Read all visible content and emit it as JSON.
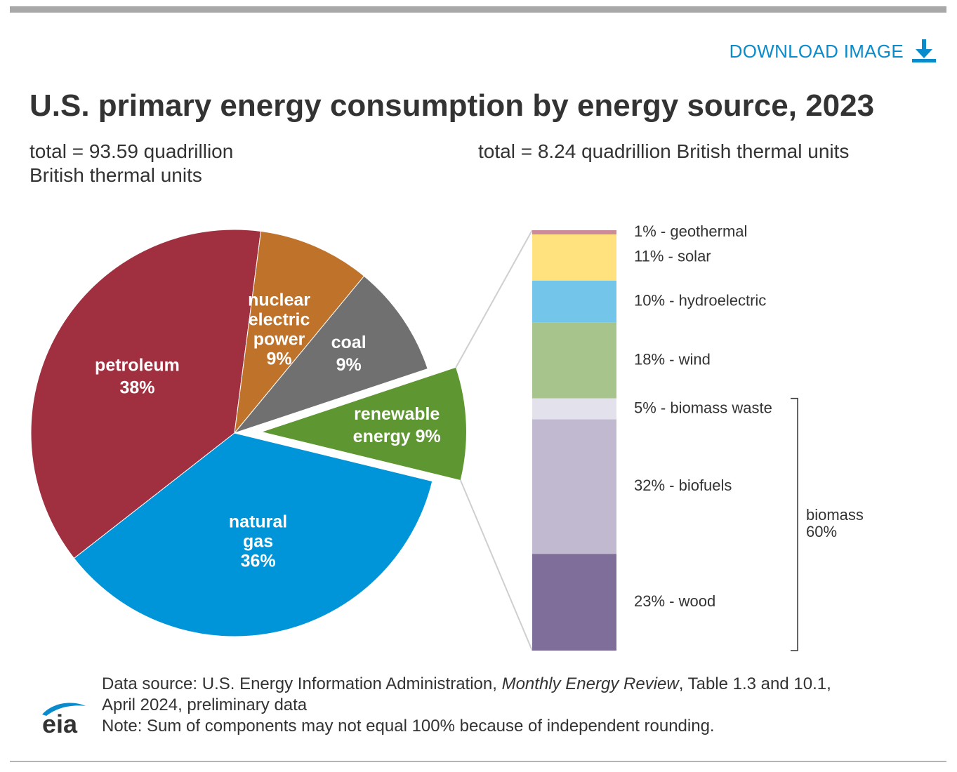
{
  "download": {
    "label": "DOWNLOAD IMAGE",
    "icon": "download-arrow-icon",
    "color": "#0a8ccc"
  },
  "title": "U.S. primary energy consumption by energy source, 2023",
  "subtitle_left": "total = 93.59 quadrillion British thermal units",
  "subtitle_right": "total = 8.24 quadrillion British thermal units",
  "chart_data": [
    {
      "type": "pie",
      "slices": [
        {
          "label_lines": [
            "petroleum",
            "38%"
          ],
          "value": 38,
          "color": "#a03040"
        },
        {
          "label_lines": [
            "nuclear",
            "electric",
            "power",
            "9%"
          ],
          "value": 9,
          "color": "#bf722a"
        },
        {
          "label_lines": [
            "coal",
            "9%"
          ],
          "value": 9,
          "color": "#707070"
        },
        {
          "label_lines": [
            "renewable",
            "energy 9%"
          ],
          "value": 9,
          "color": "#5e9732",
          "exploded": true
        },
        {
          "label_lines": [
            "natural",
            "gas",
            "36%"
          ],
          "value": 36,
          "color": "#0095d9"
        }
      ]
    },
    {
      "type": "bar",
      "stacked": true,
      "segments": [
        {
          "label": "1% - geothermal",
          "value": 1,
          "color": "#cd8b9a"
        },
        {
          "label": "11% - solar",
          "value": 11,
          "color": "#ffe17e"
        },
        {
          "label": "10% - hydroelectric",
          "value": 10,
          "color": "#73c5ea"
        },
        {
          "label": "18% - wind",
          "value": 18,
          "color": "#a7c48d"
        },
        {
          "label": "5% - biomass waste",
          "value": 5,
          "color": "#e3e1ec"
        },
        {
          "label": "32% - biofuels",
          "value": 32,
          "color": "#c1b9d0"
        },
        {
          "label": "23% - wood",
          "value": 23,
          "color": "#7e6e99"
        }
      ],
      "group": {
        "label_lines": [
          "biomass",
          "60%"
        ],
        "members": [
          "biomass waste",
          "biofuels",
          "wood"
        ]
      }
    }
  ],
  "footer": {
    "source_prefix": "Data source: U.S. Energy Information Administration, ",
    "source_italic": "Monthly Energy Review",
    "source_suffix": ", Table 1.3 and 10.1,",
    "source_line2": "April 2024, preliminary data",
    "note": "Note: Sum of components may not equal 100% because of independent rounding."
  },
  "logo": {
    "text": "eia",
    "icon": "eia-logo-icon",
    "color": "#0a8ccc"
  }
}
